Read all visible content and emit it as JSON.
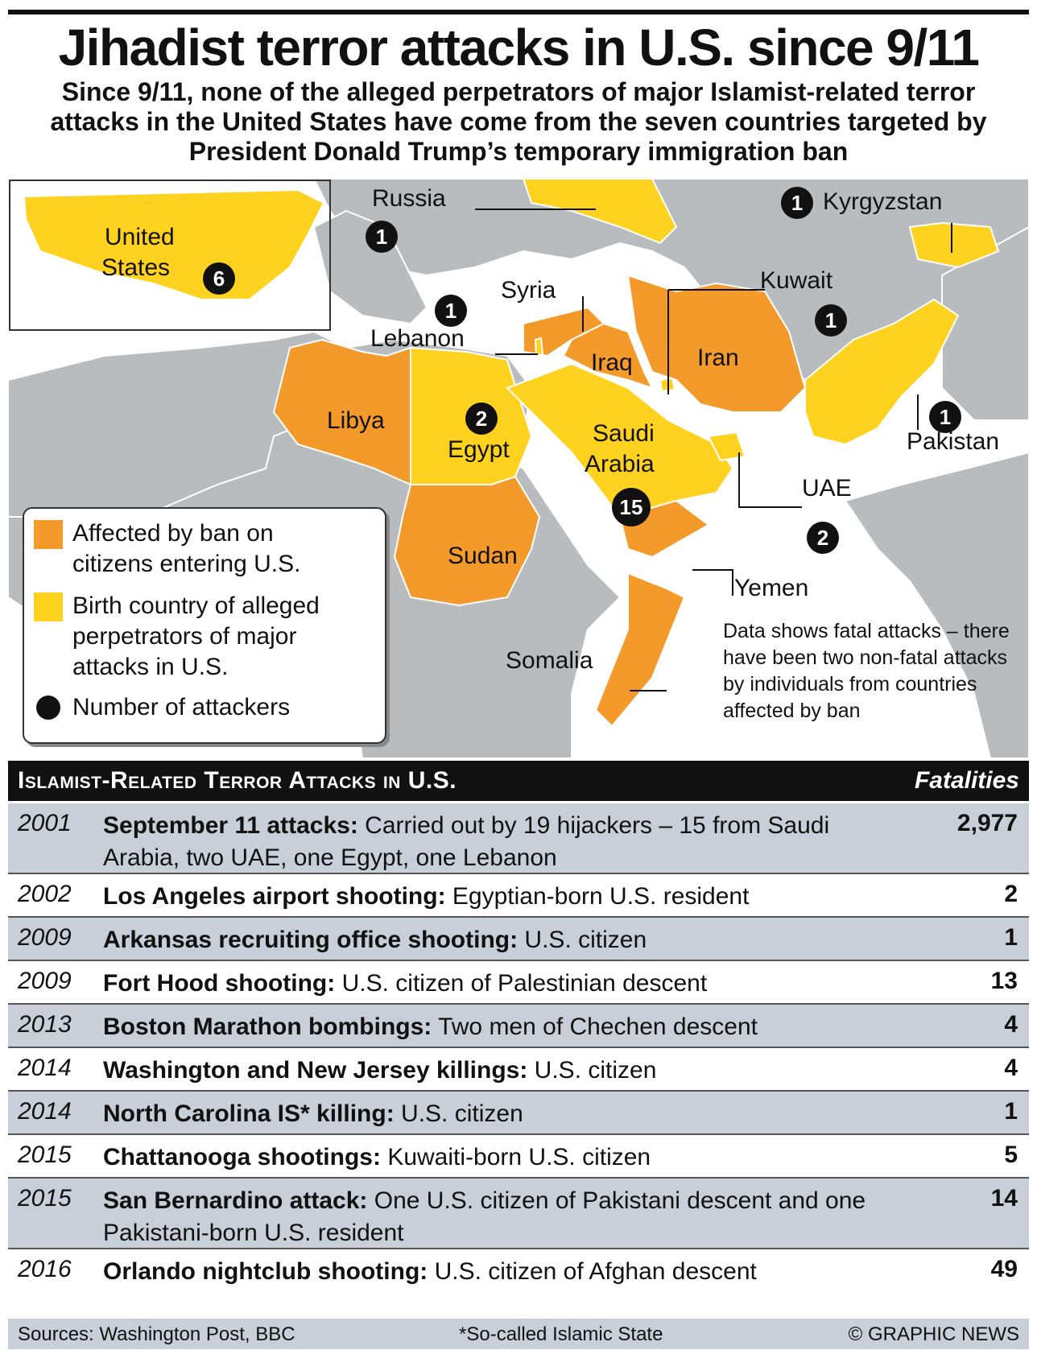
{
  "header": {
    "title": "Jihadist terror attacks in U.S. since 9/11",
    "subtitle": "Since 9/11, none of the alleged perpetrators of major Islamist-related terror attacks in the United States have come from the seven countries targeted by President Donald Trump’s temporary immigration ban"
  },
  "colors": {
    "banned": "#f39a2a",
    "birth": "#ffd21f",
    "land": "#b9bcbe",
    "sea": "#ffffff",
    "dot": "#111111"
  },
  "map": {
    "labels": {
      "usa": [
        "United",
        "States"
      ],
      "russia": "Russia",
      "kyrgyzstan": "Kyrgyzstan",
      "syria": "Syria",
      "kuwait": "Kuwait",
      "lebanon": "Lebanon",
      "iraq": "Iraq",
      "iran": "Iran",
      "libya": "Libya",
      "egypt": "Egypt",
      "saudi": [
        "Saudi",
        "Arabia"
      ],
      "pakistan": "Pakistan",
      "uae": "UAE",
      "sudan": "Sudan",
      "yemen": "Yemen",
      "somalia": "Somalia"
    },
    "counts": {
      "usa": "6",
      "russia": "1",
      "kyrgyzstan": "1",
      "lebanon": "1",
      "kuwait": "1",
      "pakistan": "1",
      "egypt": "2",
      "saudi": "15",
      "uae": "2"
    }
  },
  "legend": {
    "banned": "Affected by ban on citizens entering U.S.",
    "birth": "Birth country of alleged perpetrators of major attacks in U.S.",
    "count": "Number of attackers"
  },
  "note": "Data shows fatal attacks – there have been two non-fatal attacks by individuals from countries affected by ban",
  "table": {
    "heading": "Islamist-Related Terror Attacks in U.S.",
    "fatalities_label": "Fatalities",
    "rows": [
      {
        "year": "2001",
        "name": "September 11 attacks:",
        "detail": " Carried out by 19 hijackers – 15 from Saudi Arabia, two UAE, one Egypt, one Lebanon",
        "fatalities": "2,977"
      },
      {
        "year": "2002",
        "name": "Los Angeles airport shooting:",
        "detail": " Egyptian-born U.S. resident",
        "fatalities": "2"
      },
      {
        "year": "2009",
        "name": "Arkansas recruiting office shooting:",
        "detail": " U.S. citizen",
        "fatalities": "1"
      },
      {
        "year": "2009",
        "name": "Fort Hood shooting:",
        "detail": " U.S. citizen of Palestinian descent",
        "fatalities": "13"
      },
      {
        "year": "2013",
        "name": "Boston Marathon bombings:",
        "detail": " Two men of Chechen descent",
        "fatalities": "4"
      },
      {
        "year": "2014",
        "name": "Washington and New Jersey killings:",
        "detail": " U.S. citizen",
        "fatalities": "4"
      },
      {
        "year": "2014",
        "name": "North Carolina IS* killing:",
        "detail": " U.S. citizen",
        "fatalities": "1"
      },
      {
        "year": "2015",
        "name": "Chattanooga shootings:",
        "detail": " Kuwaiti-born U.S. citizen",
        "fatalities": "5"
      },
      {
        "year": "2015",
        "name": "San Bernardino attack:",
        "detail": " One U.S. citizen of Pakistani descent and one Pakistani-born U.S. resident",
        "fatalities": "14"
      },
      {
        "year": "2016",
        "name": "Orlando nightclub shooting:",
        "detail": " U.S. citizen of Afghan descent",
        "fatalities": "49"
      }
    ]
  },
  "footer": {
    "sources": "Sources: Washington Post, BBC",
    "footnote": "*So-called Islamic State",
    "credit": "© GRAPHIC NEWS"
  }
}
